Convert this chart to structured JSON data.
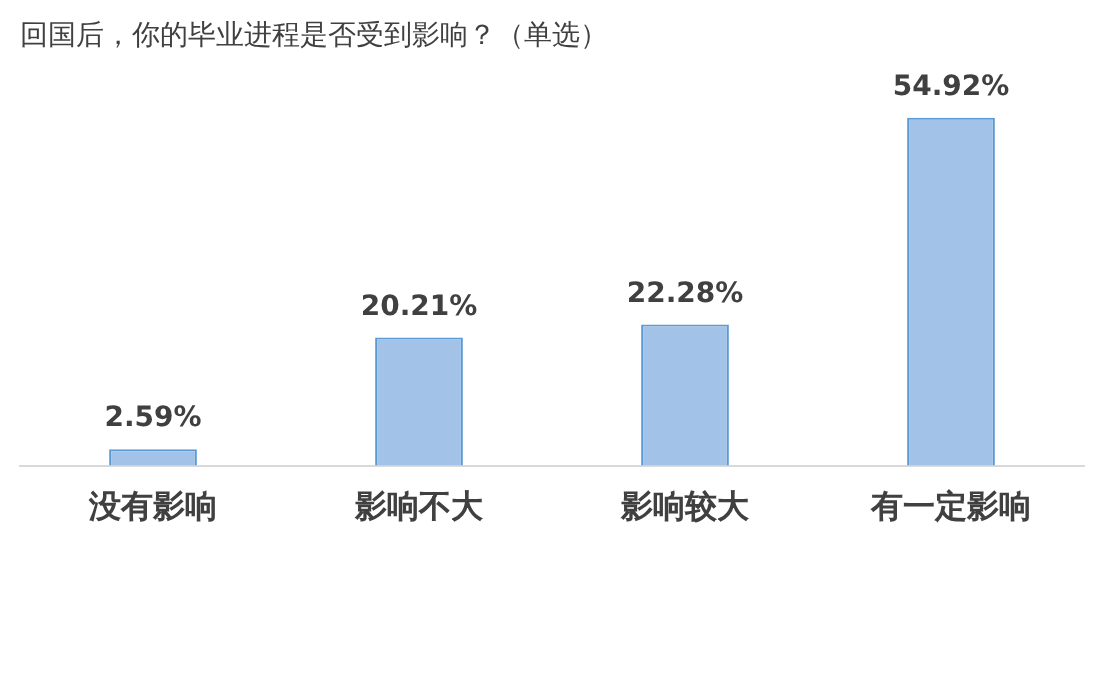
{
  "chart_data": {
    "type": "bar",
    "title": "回国后，你的毕业进程是否受到影响？（单选）",
    "categories": [
      "没有影响",
      "影响不大",
      "影响较大",
      "有一定影响"
    ],
    "values": [
      2.59,
      20.21,
      22.28,
      54.92
    ],
    "value_labels": [
      "2.59%",
      "20.21%",
      "22.28%",
      "54.92%"
    ],
    "color": "#a3c2e8",
    "grid": false,
    "legend": false
  }
}
